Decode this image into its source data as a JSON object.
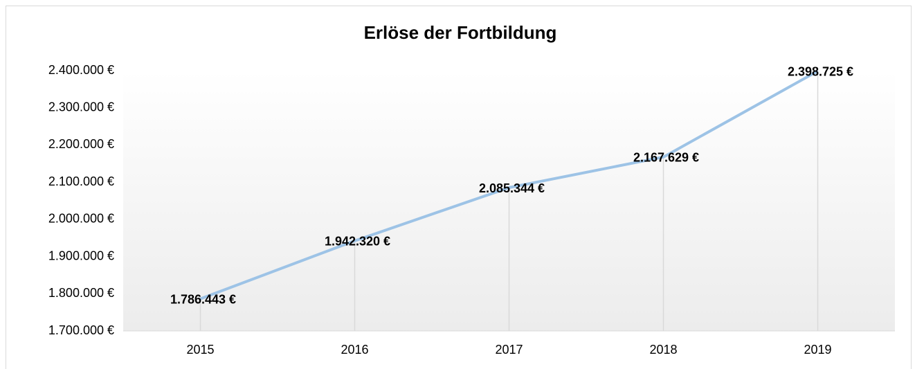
{
  "chart_data": {
    "type": "line",
    "title": "Erlöse der Fortbildung",
    "categories": [
      "2015",
      "2016",
      "2017",
      "2018",
      "2019"
    ],
    "series": [
      {
        "name": "Erlöse",
        "color": "#9dc3e6",
        "values": [
          1786443,
          1942320,
          2085344,
          2167629,
          2398725
        ],
        "value_labels": [
          "1.786.443 €",
          "1.942.320 €",
          "2.085.344 €",
          "2.167.629 €",
          "2.398.725 €"
        ]
      }
    ],
    "ylim": [
      1700000,
      2400000
    ],
    "yticks": [
      {
        "value": 1700000,
        "label": "1.700.000 €"
      },
      {
        "value": 1800000,
        "label": "1.800.000 €"
      },
      {
        "value": 1900000,
        "label": "1.900.000 €"
      },
      {
        "value": 2000000,
        "label": "2.000.000 €"
      },
      {
        "value": 2100000,
        "label": "2.100.000 €"
      },
      {
        "value": 2200000,
        "label": "2.200.000 €"
      },
      {
        "value": 2300000,
        "label": "2.300.000 €"
      },
      {
        "value": 2400000,
        "label": "2.400.000 €"
      }
    ],
    "grid": false,
    "drop_lines": true
  }
}
